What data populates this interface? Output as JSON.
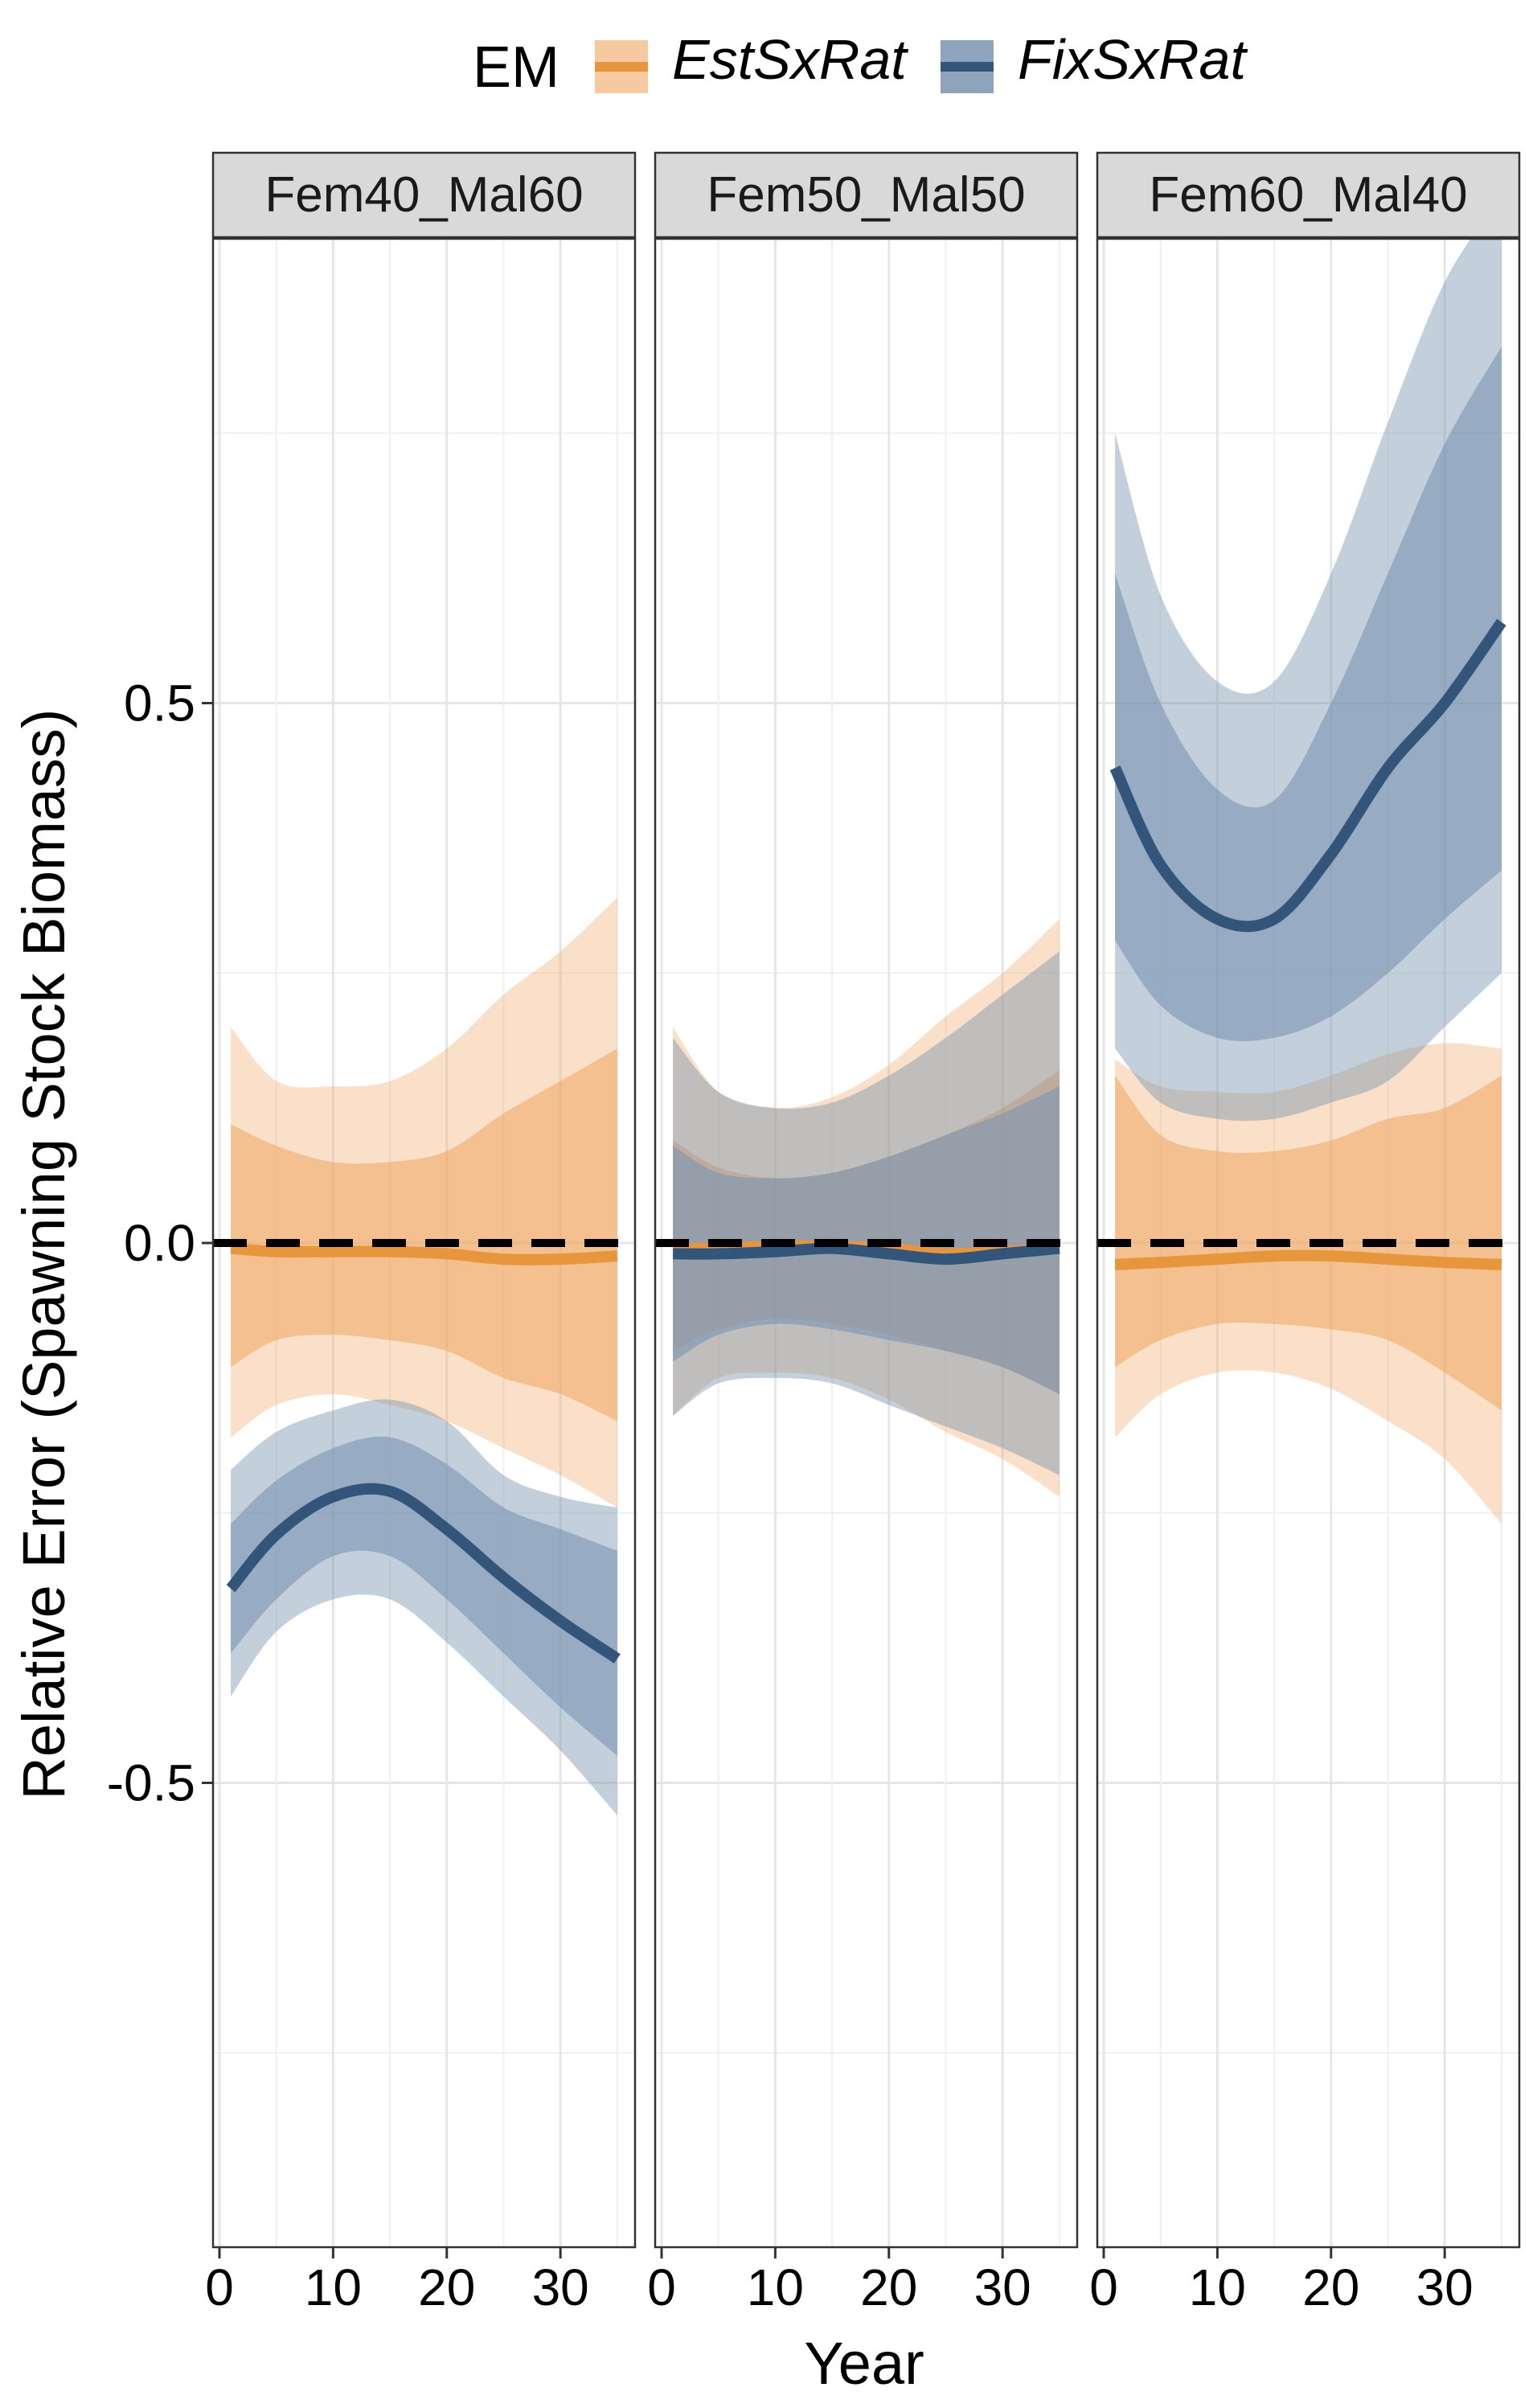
{
  "chart_data": {
    "type": "line",
    "description_of_encoding": "",
    "legend": {
      "title": "EM",
      "position": "top",
      "entries": [
        {
          "label": "EstSxRat",
          "color": "#E8963E",
          "fill": "#F0A560"
        },
        {
          "label": "FixSxRat",
          "color": "#33557A",
          "fill": "#7A94B0"
        }
      ]
    },
    "xlabel": "Year",
    "ylabel": "Relative Error (Spawning Stock Biomass)",
    "xlim": [
      0,
      36
    ],
    "ylim": [
      -0.93,
      0.93
    ],
    "x_ticks": [
      0,
      10,
      20,
      30
    ],
    "x_tick_labels": [
      "0",
      "10",
      "20",
      "30"
    ],
    "y_ticks": [
      -0.5,
      0.0,
      0.5
    ],
    "y_tick_labels": [
      "-0.5",
      "0.0",
      "0.5"
    ],
    "reference_line": {
      "y": 0,
      "style": "dashed",
      "color": "#000000"
    },
    "grid": true,
    "x": [
      1,
      5,
      10,
      15,
      20,
      25,
      30,
      35
    ],
    "panels": [
      {
        "label": "Fem40_Mal60",
        "series": [
          {
            "name": "EstSxRat",
            "median": [
              -0.005,
              -0.008,
              -0.008,
              -0.008,
              -0.01,
              -0.015,
              -0.015,
              -0.012
            ],
            "inner_low": [
              -0.115,
              -0.09,
              -0.085,
              -0.09,
              -0.1,
              -0.125,
              -0.14,
              -0.165
            ],
            "inner_high": [
              0.11,
              0.09,
              0.075,
              0.075,
              0.085,
              0.12,
              0.15,
              0.18
            ],
            "outer_low": [
              -0.18,
              -0.15,
              -0.14,
              -0.15,
              -0.165,
              -0.19,
              -0.215,
              -0.245
            ],
            "outer_high": [
              0.2,
              0.15,
              0.145,
              0.15,
              0.18,
              0.23,
              0.27,
              0.32
            ]
          },
          {
            "name": "FixSxRat",
            "median": [
              -0.32,
              -0.27,
              -0.235,
              -0.23,
              -0.265,
              -0.31,
              -0.35,
              -0.385
            ],
            "inner_low": [
              -0.38,
              -0.33,
              -0.29,
              -0.29,
              -0.33,
              -0.38,
              -0.43,
              -0.475
            ],
            "inner_high": [
              -0.26,
              -0.22,
              -0.19,
              -0.18,
              -0.205,
              -0.245,
              -0.265,
              -0.285
            ],
            "outer_low": [
              -0.42,
              -0.36,
              -0.33,
              -0.33,
              -0.37,
              -0.42,
              -0.47,
              -0.53
            ],
            "outer_high": [
              -0.21,
              -0.175,
              -0.155,
              -0.145,
              -0.165,
              -0.215,
              -0.235,
              -0.245
            ]
          }
        ]
      },
      {
        "label": "Fem50_Mal50",
        "series": [
          {
            "name": "EstSxRat",
            "median": [
              -0.005,
              -0.005,
              -0.003,
              -0.003,
              -0.005,
              -0.01,
              -0.008,
              -0.005
            ],
            "inner_low": [
              -0.1,
              -0.08,
              -0.07,
              -0.075,
              -0.085,
              -0.1,
              -0.115,
              -0.14
            ],
            "inner_high": [
              0.095,
              0.07,
              0.06,
              0.065,
              0.08,
              0.1,
              0.125,
              0.16
            ],
            "outer_low": [
              -0.16,
              -0.125,
              -0.12,
              -0.125,
              -0.145,
              -0.175,
              -0.2,
              -0.235
            ],
            "outer_high": [
              0.2,
              0.14,
              0.125,
              0.135,
              0.165,
              0.21,
              0.25,
              0.3
            ]
          },
          {
            "name": "FixSxRat",
            "median": [
              -0.01,
              -0.01,
              -0.008,
              -0.005,
              -0.01,
              -0.015,
              -0.01,
              -0.005
            ],
            "inner_low": [
              -0.11,
              -0.085,
              -0.075,
              -0.08,
              -0.09,
              -0.1,
              -0.115,
              -0.14
            ],
            "inner_high": [
              0.09,
              0.065,
              0.06,
              0.065,
              0.08,
              0.1,
              0.12,
              0.145
            ],
            "outer_low": [
              -0.16,
              -0.13,
              -0.125,
              -0.13,
              -0.15,
              -0.17,
              -0.19,
              -0.215
            ],
            "outer_high": [
              0.19,
              0.14,
              0.125,
              0.13,
              0.155,
              0.19,
              0.23,
              0.27
            ]
          }
        ]
      },
      {
        "label": "Fem60_Mal40",
        "series": [
          {
            "name": "EstSxRat",
            "median": [
              -0.02,
              -0.018,
              -0.015,
              -0.012,
              -0.012,
              -0.015,
              -0.018,
              -0.02
            ],
            "inner_low": [
              -0.115,
              -0.09,
              -0.075,
              -0.075,
              -0.08,
              -0.09,
              -0.12,
              -0.155
            ],
            "inner_high": [
              0.155,
              0.1,
              0.085,
              0.085,
              0.095,
              0.115,
              0.125,
              0.155
            ],
            "outer_low": [
              -0.18,
              -0.14,
              -0.12,
              -0.12,
              -0.135,
              -0.165,
              -0.2,
              -0.26
            ],
            "outer_high": [
              0.17,
              0.145,
              0.14,
              0.14,
              0.155,
              0.175,
              0.185,
              0.18
            ]
          },
          {
            "name": "FixSxRat",
            "median": [
              0.44,
              0.35,
              0.3,
              0.3,
              0.36,
              0.44,
              0.5,
              0.575
            ],
            "inner_low": [
              0.28,
              0.22,
              0.19,
              0.19,
              0.21,
              0.25,
              0.3,
              0.345
            ],
            "inner_high": [
              0.62,
              0.5,
              0.42,
              0.41,
              0.5,
              0.62,
              0.74,
              0.83
            ],
            "outer_low": [
              0.18,
              0.13,
              0.115,
              0.115,
              0.13,
              0.15,
              0.2,
              0.25
            ],
            "outer_high": [
              0.75,
              0.6,
              0.52,
              0.52,
              0.62,
              0.76,
              0.89,
              0.97
            ]
          }
        ]
      }
    ]
  }
}
